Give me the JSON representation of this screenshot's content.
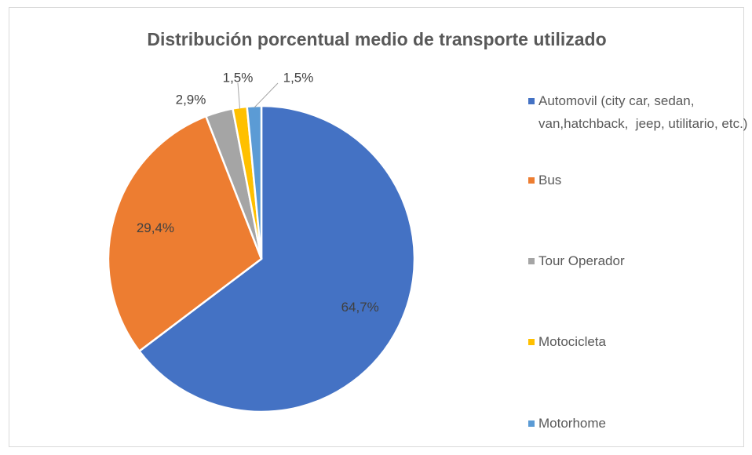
{
  "chart_data": {
    "type": "pie",
    "title": "Distribución porcentual medio de transporte utilizado",
    "categories": [
      "Automovil (city car, sedan, van,hatchback,  jeep, utilitario, etc.)",
      "Bus",
      "Tour Operador",
      "Motocicleta",
      "Motorhome"
    ],
    "values": [
      64.7,
      29.4,
      2.9,
      1.5,
      1.5
    ],
    "value_labels": [
      "64,7%",
      "29,4%",
      "2,9%",
      "1,5%",
      "1,5%"
    ],
    "colors": [
      "#4472c4",
      "#ed7d31",
      "#a5a5a5",
      "#ffc000",
      "#5b9bd5"
    ],
    "legend": "right"
  }
}
